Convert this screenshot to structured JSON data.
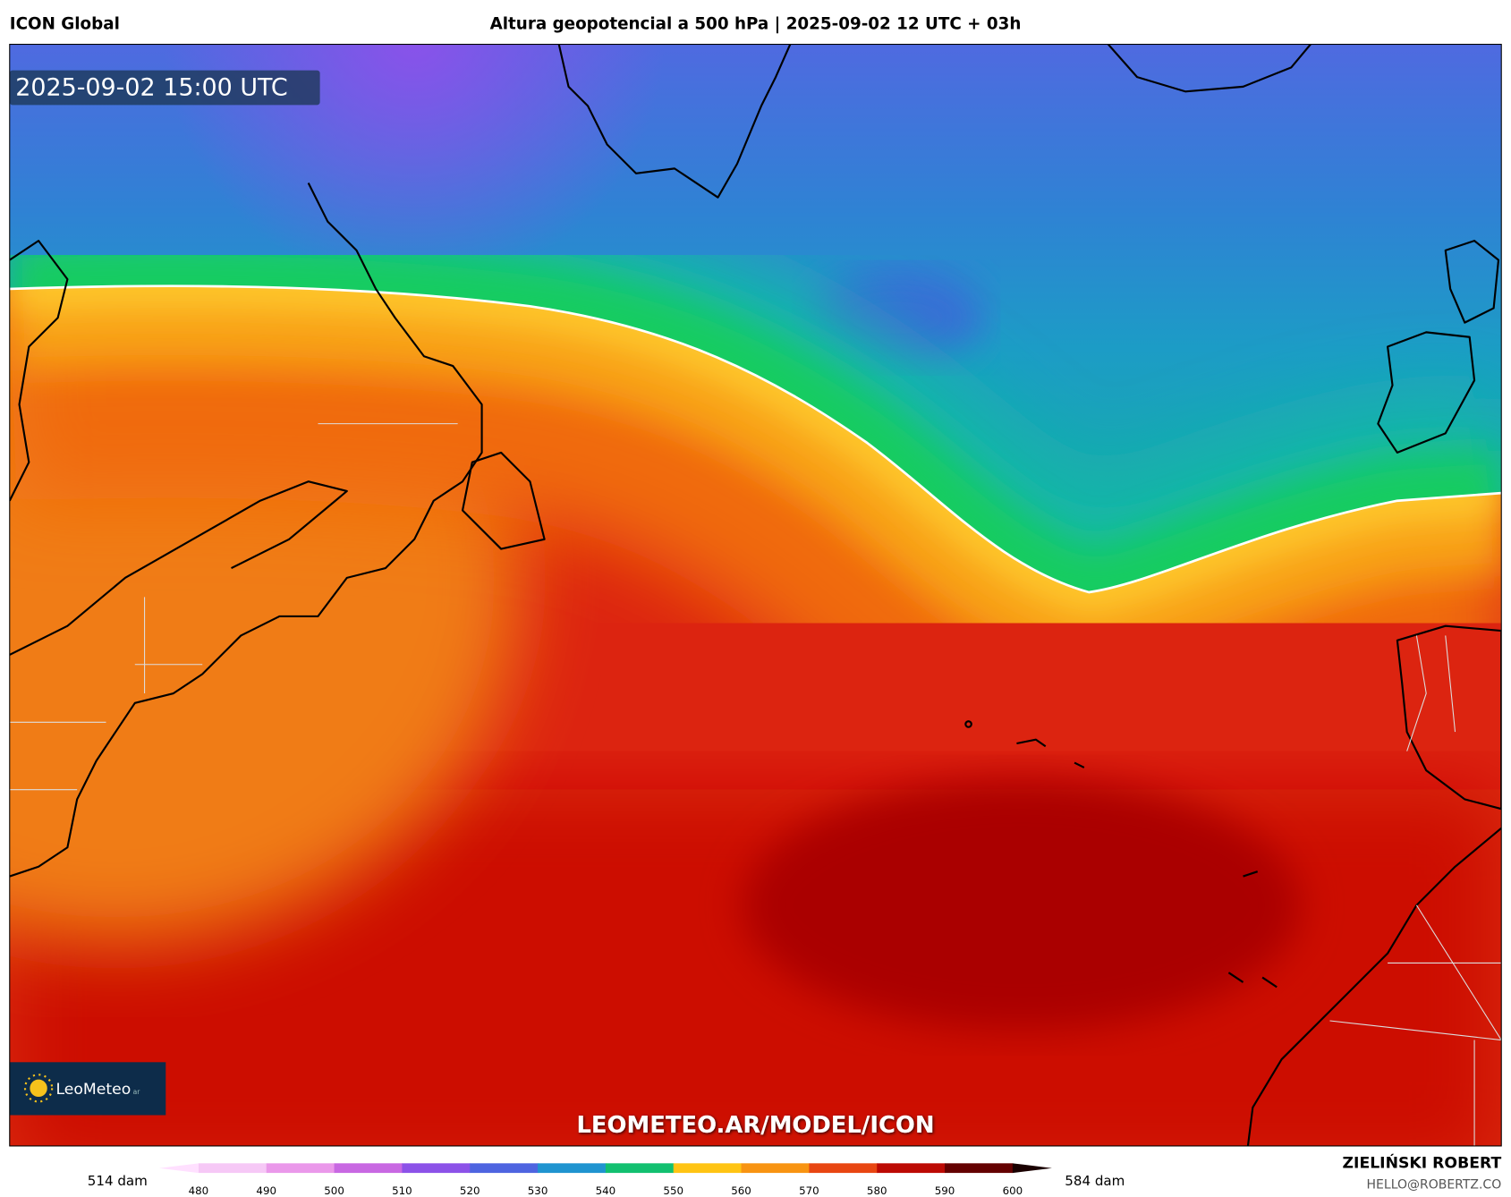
{
  "header": {
    "model": "ICON Global",
    "title": "Altura geopotencial a 500 hPa | 2025-09-02 12 UTC + 03h"
  },
  "map": {
    "timestamp": "2025-09-02 15:00 UTC",
    "watermark": "LEOMETEO.AR/MODEL/ICON"
  },
  "logo": {
    "text": "LeoMeteo",
    "suffix": "ar"
  },
  "colorbar": {
    "min_label": "514 dam",
    "max_label": "584 dam",
    "ticks": [
      480,
      490,
      500,
      510,
      520,
      530,
      540,
      550,
      560,
      570,
      580,
      590,
      600
    ],
    "colors": [
      "#f6c8f6",
      "#ea98ea",
      "#c868e2",
      "#8c52e8",
      "#4e64e0",
      "#2094d0",
      "#12c070",
      "#ffc414",
      "#f89412",
      "#e84612",
      "#bc0a04",
      "#640000"
    ],
    "low_color": "#ffe0ff",
    "high_color": "#1a0000"
  },
  "credits": {
    "name": "ZIELIŃSKI ROBERT",
    "email": "HELLO@ROBERTZ.CO"
  }
}
